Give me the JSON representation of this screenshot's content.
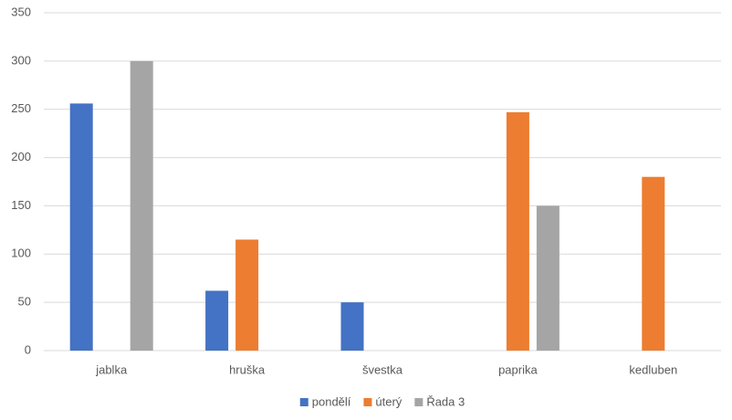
{
  "chart_data": {
    "type": "bar",
    "categories": [
      "jablka",
      "hruška",
      "švestka",
      "paprika",
      "kedluben"
    ],
    "series": [
      {
        "name": "pondělí",
        "color": "#4472c4",
        "values": [
          256,
          62,
          50,
          null,
          null
        ]
      },
      {
        "name": "úterý",
        "color": "#ed7d31",
        "values": [
          null,
          115,
          null,
          247,
          180
        ]
      },
      {
        "name": "Řada 3",
        "color": "#a5a5a5",
        "values": [
          300,
          null,
          null,
          150,
          null
        ]
      }
    ],
    "ylim": [
      0,
      350
    ],
    "yticks": [
      0,
      50,
      100,
      150,
      200,
      250,
      300,
      350
    ],
    "grid": true,
    "legend": "bottom"
  }
}
